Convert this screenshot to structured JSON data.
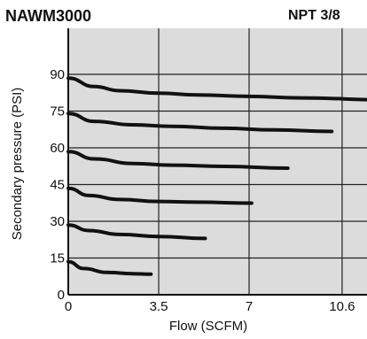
{
  "header": {
    "model": "NAWM3000",
    "port": "NPT 3/8"
  },
  "chart_data": {
    "type": "line",
    "xlabel": "Flow (SCFM)",
    "ylabel": "Secondary pressure (PSI)",
    "xlim": [
      0,
      12.3
    ],
    "ylim": [
      0,
      99
    ],
    "x_ticks": [
      "0",
      "3.5",
      "7",
      "10.6"
    ],
    "x_tick_values": [
      0,
      3.5,
      7,
      10.6
    ],
    "y_ticks": [
      "0",
      "15",
      "30",
      "45",
      "60",
      "75",
      "90"
    ],
    "y_tick_values": [
      0,
      15,
      30,
      45,
      60,
      75,
      90
    ],
    "grid": true,
    "colors": {
      "background": "#dcdcdc",
      "line": "#111111",
      "grid": "#222222"
    },
    "series": [
      {
        "x": [
          0,
          1,
          2,
          3.5,
          5,
          7,
          9,
          12.3
        ],
        "y": [
          88.5,
          85,
          83.3,
          82.3,
          81.6,
          81,
          80.4,
          79.6
        ]
      },
      {
        "x": [
          0,
          1,
          2.5,
          4,
          6,
          8,
          10.2
        ],
        "y": [
          74,
          70.8,
          69.4,
          68.8,
          68,
          67.3,
          66.7
        ]
      },
      {
        "x": [
          0,
          1,
          2.5,
          4,
          6,
          8.5
        ],
        "y": [
          58.5,
          55.5,
          53.6,
          52.9,
          52.4,
          51.7
        ]
      },
      {
        "x": [
          0,
          0.8,
          2,
          3.5,
          5,
          7.1
        ],
        "y": [
          43.5,
          40.5,
          38.9,
          38.1,
          37.8,
          37.4
        ]
      },
      {
        "x": [
          0,
          0.8,
          2,
          3.5,
          5.3
        ],
        "y": [
          28.5,
          26.2,
          24.6,
          23.8,
          23
        ]
      },
      {
        "x": [
          0,
          0.6,
          1.5,
          2.5,
          3.2
        ],
        "y": [
          13.5,
          10.7,
          9.1,
          8.6,
          8.4
        ]
      }
    ]
  }
}
